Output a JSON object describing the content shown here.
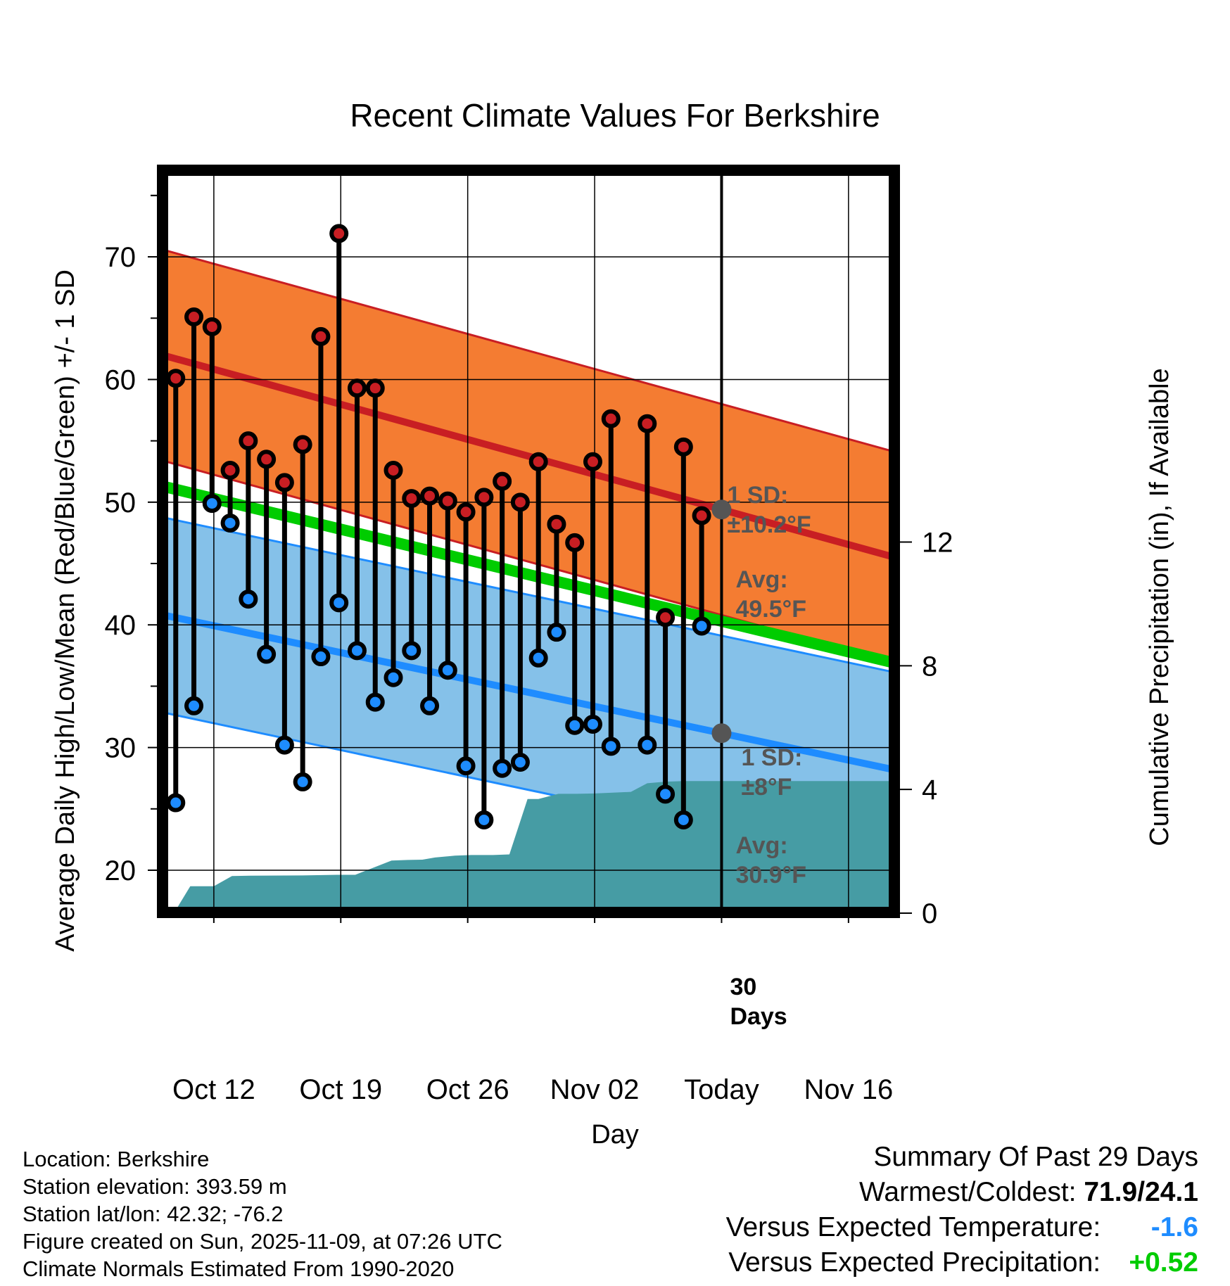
{
  "chart_data": {
    "type": "line",
    "title": "Recent Climate Values For Berkshire",
    "xlabel": "Day",
    "ylabel": "Average Daily High/Low/Mean (Red/Blue/Green) +/- 1 SD",
    "y2label": "Cumulative Precipitation (in), If Available",
    "ylim": [
      16.5,
      77
    ],
    "y2lim": [
      0,
      24
    ],
    "y_ticks": [
      "20",
      "30",
      "40",
      "50",
      "60",
      "70"
    ],
    "y2_ticks": [
      "0",
      "4",
      "8",
      "12"
    ],
    "x_ticks": [
      "Oct 12",
      "Oct 19",
      "Oct 26",
      "Nov 02",
      "Today",
      "Nov 16"
    ],
    "x_day_start": 0,
    "x_day_end": 40.9,
    "x_tick_days": [
      3.1,
      10.1,
      17.1,
      24.1,
      31.1,
      38.1
    ],
    "today_day": 31.1,
    "normals": {
      "high_avg": [
        62.1,
        45.4
      ],
      "high_sd": 8.6,
      "low_avg": [
        40.9,
        28.1
      ],
      "low_sd": 7.95,
      "mean_avg": [
        51.4,
        36.8
      ],
      "days": [
        0,
        40.9
      ]
    },
    "series": [
      {
        "name": "High",
        "values": [
          60.1,
          65.1,
          64.3,
          52.6,
          55.0,
          53.5,
          51.6,
          54.7,
          63.5,
          71.9,
          59.3,
          59.3,
          52.6,
          50.3,
          50.5,
          50.1,
          49.2,
          50.4,
          51.7,
          50.0,
          53.3,
          48.2,
          46.7,
          53.3,
          56.8,
          null,
          56.4,
          40.6,
          54.5,
          48.9
        ]
      },
      {
        "name": "Low",
        "values": [
          25.5,
          33.4,
          49.9,
          48.3,
          42.1,
          37.6,
          30.2,
          27.2,
          37.4,
          41.8,
          37.9,
          33.7,
          35.7,
          37.9,
          33.4,
          36.3,
          28.5,
          24.1,
          28.3,
          28.8,
          37.3,
          39.4,
          31.8,
          31.9,
          30.1,
          null,
          30.2,
          26.2,
          24.1,
          39.9
        ]
      },
      {
        "name": "Cumulative Precipitation",
        "days": [
          0.9,
          1.8,
          3.1,
          4.1,
          5.1,
          8.0,
          9.9,
          10.9,
          12.9,
          13.8,
          14.6,
          15.3,
          16.4,
          17.3,
          18.5,
          19.4,
          20.4,
          21.0,
          22.1,
          23.1,
          24.1,
          25.2,
          26.1,
          27.0,
          28.0,
          29.0,
          30.0,
          31.1,
          40.9
        ],
        "values": [
          0,
          0.87,
          0.87,
          1.2,
          1.21,
          1.22,
          1.24,
          1.24,
          1.7,
          1.72,
          1.73,
          1.8,
          1.86,
          1.88,
          1.88,
          1.9,
          3.69,
          3.69,
          3.86,
          3.86,
          3.87,
          3.9,
          3.92,
          4.2,
          4.25,
          4.27,
          4.27,
          4.27,
          4.27
        ]
      }
    ],
    "annotations": {
      "high_sd_label": "1 SD:",
      "high_sd_value": "±10.2°F",
      "high_avg_label": "Avg:",
      "high_avg_value": "49.5°F",
      "low_sd_label": "1 SD:",
      "low_sd_value": "±8°F",
      "low_avg_label": "Avg:",
      "low_avg_value": "30.9°F",
      "days_number": "30",
      "days_label": "Days"
    },
    "colors": {
      "high_band": "#f47c32",
      "high_line": "#c81e23",
      "low_band": "#85c1e9",
      "low_line": "#1e8cff",
      "mean_line": "#00cc00",
      "precip": "#469ca4",
      "marker_high": "#c81e23",
      "marker_low": "#1e8cff",
      "annotation": "#555555"
    }
  },
  "info": {
    "location": "Location: Berkshire",
    "elevation": "Station elevation: 393.59 m",
    "latlon": "Station lat/lon: 42.32; -76.2",
    "created": "Figure created on Sun, 2025-11-09, at 07:26 UTC",
    "normals": "Climate Normals Estimated From 1990-2020"
  },
  "summary": {
    "title": "Summary Of Past 29 Days",
    "warm_cold_label": "Warmest/Coldest:",
    "warm_cold_value": "71.9/24.1",
    "temp_label": "Versus Expected Temperature:",
    "temp_value": "-1.6",
    "temp_color": "#1e8cff",
    "precip_label": "Versus Expected Precipitation:",
    "precip_value": "+0.52",
    "precip_color": "#00cc00"
  }
}
